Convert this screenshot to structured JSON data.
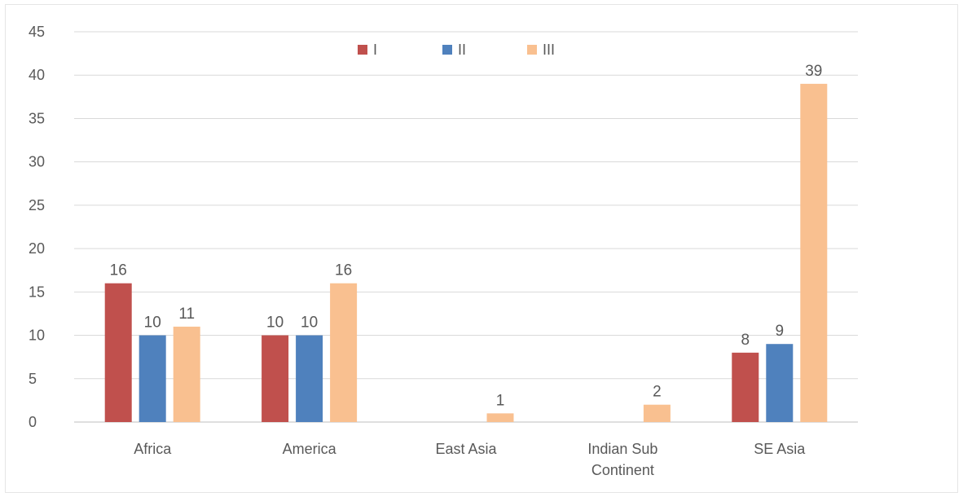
{
  "chart_data": {
    "type": "bar",
    "categories": [
      "Africa",
      "America",
      "East Asia",
      "Indian Sub Continent",
      "SE Asia"
    ],
    "category_lines": [
      [
        "Africa"
      ],
      [
        "America"
      ],
      [
        "East Asia"
      ],
      [
        "Indian Sub",
        "Continent"
      ],
      [
        "SE Asia"
      ]
    ],
    "series": [
      {
        "name": "I",
        "color": "#c0504d",
        "values": [
          16,
          10,
          null,
          null,
          8
        ]
      },
      {
        "name": "II",
        "color": "#4f81bd",
        "values": [
          10,
          10,
          null,
          null,
          9
        ]
      },
      {
        "name": "III",
        "color": "#f9c090",
        "values": [
          11,
          16,
          1,
          2,
          39
        ]
      }
    ],
    "ylim": [
      0,
      45
    ],
    "yticks": [
      0,
      5,
      10,
      15,
      20,
      25,
      30,
      35,
      40,
      45
    ],
    "grid": true,
    "legend_position": "top-center",
    "title": "",
    "xlabel": "",
    "ylabel": ""
  }
}
